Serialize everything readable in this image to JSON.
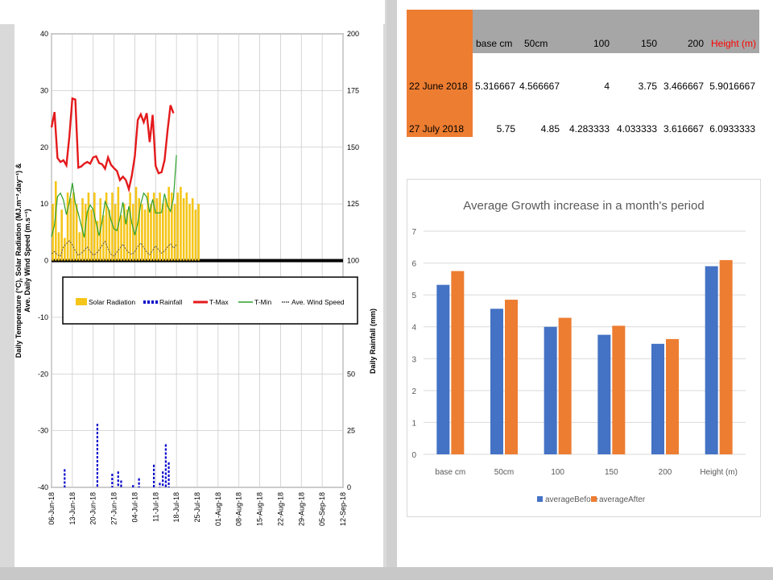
{
  "weather_chart": {
    "y_left_label": "Daily Temperature (°C), Solar Radiation (MJ.m⁻².day⁻¹) & Ave. Daily Wind Speed (m.s⁻¹)",
    "y_right_label": "Daily Rainfall (mm)",
    "legend": [
      "Solar Radiation",
      "Rainfall",
      "T-Max",
      "T-Min",
      "Ave. Wind Speed"
    ]
  },
  "table": {
    "headers": [
      "base cm",
      "50cm",
      "100",
      "150",
      "200",
      "Height (m)"
    ],
    "rows": [
      {
        "label": "22 June 2018",
        "values": [
          "5.316667",
          "4.566667",
          "4",
          "3.75",
          "3.466667",
          "5.9016667"
        ]
      },
      {
        "label": "27 July 2018",
        "values": [
          "5.75",
          "4.85",
          "4.283333",
          "4.033333",
          "3.616667",
          "6.0933333"
        ]
      }
    ],
    "colors": {
      "label_bg": "#ed7d31",
      "header_bg": "#a6a6a6",
      "height_header": "#ff0000"
    }
  },
  "chart_data": [
    {
      "type": "line",
      "title": "",
      "xlabel": "",
      "ylabel": "Daily Temperature (°C), Solar Radiation (MJ.m⁻².day⁻¹) & Ave. Daily Wind Speed (m.s⁻¹)",
      "y2label": "Daily Rainfall (mm)",
      "x_ticks": [
        "06-Jun-18",
        "13-Jun-18",
        "20-Jun-18",
        "27-Jun-18",
        "04-Jul-18",
        "11-Jul-18",
        "18-Jul-18",
        "25-Jul-18",
        "01-Aug-18",
        "08-Aug-18",
        "15-Aug-18",
        "22-Aug-18",
        "29-Aug-18",
        "05-Sep-18",
        "12-Sep-18"
      ],
      "ylim": [
        -40,
        40
      ],
      "y_ticks": [
        -40,
        -30,
        -20,
        -10,
        0,
        10,
        20,
        30,
        40
      ],
      "y2lim": [
        0,
        200
      ],
      "y2_ticks": [
        0,
        25,
        50,
        75,
        100,
        125,
        150,
        175,
        200
      ],
      "grid": true,
      "legend_position": "upper-center",
      "start_date": "2018-06-06",
      "series": [
        {
          "name": "Solar Radiation",
          "type": "bar",
          "axis": "left",
          "color": "#f5c518",
          "values": [
            10,
            14,
            5,
            9,
            4,
            12,
            11,
            12,
            10,
            5,
            11,
            10,
            12,
            9,
            12,
            7,
            11,
            8,
            12,
            9,
            12,
            10,
            13,
            8,
            10,
            9,
            12,
            10,
            13,
            11,
            10,
            9,
            12,
            10,
            12,
            11,
            12,
            10,
            11,
            13,
            12,
            10,
            12,
            13,
            11,
            12,
            10,
            11,
            9,
            10
          ]
        },
        {
          "name": "Rainfall",
          "type": "bar",
          "axis": "right",
          "color": "#0000cc",
          "values": [
            0,
            0,
            0,
            0,
            8,
            0,
            0,
            0,
            0,
            0,
            0,
            0,
            0,
            0,
            0,
            28,
            0,
            0,
            0,
            0,
            6,
            0,
            7,
            3,
            0,
            0,
            0,
            1,
            0,
            4,
            0,
            0,
            0,
            0,
            10,
            0,
            2,
            7,
            19,
            11,
            0,
            0,
            0,
            0,
            0,
            0,
            0,
            0,
            0,
            0
          ]
        },
        {
          "name": "T-Max",
          "type": "line",
          "axis": "left",
          "color": "#e41a1c",
          "values": [
            23.5,
            26.2,
            18.1,
            17.4,
            17.7,
            16.8,
            21.9,
            28.6,
            28.4,
            16.4,
            16.6,
            17.1,
            17.4,
            17.1,
            18.2,
            18.4,
            17.2,
            17.0,
            16.2,
            18.2,
            16.9,
            16.3,
            15.8,
            14.2,
            14.8,
            14.2,
            12.6,
            15.0,
            18.4,
            24.8,
            25.8,
            24.4,
            26.0,
            20.9,
            25.7,
            16.7,
            15.4,
            15.6,
            17.7,
            22.9,
            27.4,
            26.0
          ]
        },
        {
          "name": "T-Min",
          "type": "line",
          "axis": "left",
          "color": "#2ca02c",
          "values": [
            4.2,
            6.3,
            11.3,
            11.9,
            10.7,
            8.1,
            10.3,
            13.7,
            10.1,
            8.3,
            6.2,
            4.1,
            8.6,
            9.8,
            9.0,
            6.6,
            4.4,
            6.9,
            10.4,
            9.3,
            7.1,
            5.6,
            5.3,
            7.5,
            10.3,
            6.4,
            9.6,
            6.6,
            4.5,
            6.6,
            10.0,
            11.9,
            11.2,
            8.5,
            10.8,
            8.4,
            8.4,
            8.5,
            11.8,
            9.6,
            8.7,
            11.0,
            18.6
          ]
        },
        {
          "name": "Ave. Wind Speed",
          "type": "line",
          "axis": "left",
          "color": "#555555",
          "values": [
            1.2,
            1.6,
            1.0,
            0.8,
            2.4,
            3.0,
            3.5,
            2.8,
            1.7,
            0.9,
            1.3,
            1.8,
            2.4,
            1.6,
            1.0,
            1.2,
            1.9,
            2.7,
            3.4,
            2.1,
            1.1,
            0.8,
            1.5,
            2.2,
            2.9,
            2.0,
            1.4,
            1.1,
            1.6,
            2.5,
            3.1,
            2.3,
            1.5,
            1.0,
            1.8,
            2.6,
            1.9,
            1.3,
            1.7,
            2.4,
            3.0,
            2.2,
            2.8
          ]
        }
      ]
    },
    {
      "type": "bar",
      "title": "Average Growth increase in a month's period",
      "xlabel": "",
      "ylabel": "",
      "categories": [
        "base cm",
        "50cm",
        "100",
        "150",
        "200",
        "Height (m)"
      ],
      "ylim": [
        0,
        7
      ],
      "y_ticks": [
        0,
        1,
        2,
        3,
        4,
        5,
        6,
        7
      ],
      "grid": true,
      "legend_position": "bottom",
      "series": [
        {
          "name": "averageBefore",
          "color": "#4472c4",
          "values": [
            5.316667,
            4.566667,
            4,
            3.75,
            3.466667,
            5.9016667
          ]
        },
        {
          "name": "averageAfter",
          "color": "#ed7d31",
          "values": [
            5.75,
            4.85,
            4.283333,
            4.033333,
            3.616667,
            6.0933333
          ]
        }
      ]
    }
  ]
}
